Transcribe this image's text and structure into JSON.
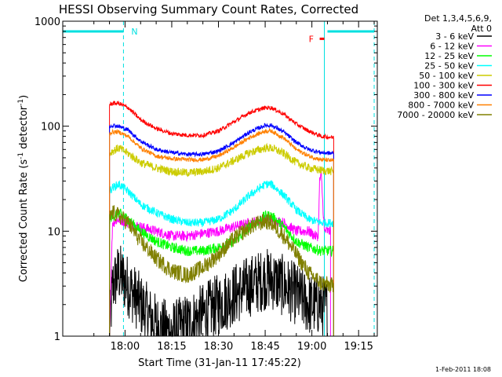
{
  "chart_data": {
    "type": "line",
    "title": "HESSI Observing Summary Count Rates, Corrected",
    "xlabel": "Start Time (31-Jan-11 17:45:22)",
    "ylabel_main": "Corrected Count Rate (s",
    "ylabel_sup1": "-1",
    "ylabel_mid": " detector",
    "ylabel_sup2": "-1",
    "ylabel_end": ")",
    "yscale": "log",
    "ylim": [
      1,
      1000
    ],
    "xlim_minutes": [
      -5,
      96
    ],
    "x_ticks": [
      {
        "t": 15,
        "label": "18:00"
      },
      {
        "t": 30,
        "label": "18:15"
      },
      {
        "t": 45,
        "label": "18:30"
      },
      {
        "t": 60,
        "label": "18:45"
      },
      {
        "t": 75,
        "label": "19:00"
      },
      {
        "t": 90,
        "label": "19:15"
      }
    ],
    "y_ticks": [
      {
        "v": 1,
        "label": "1"
      },
      {
        "v": 10,
        "label": "10"
      },
      {
        "v": 100,
        "label": "100"
      },
      {
        "v": 1000,
        "label": "1000"
      }
    ],
    "legend_header": [
      "Det 1,3,4,5,6,9,",
      "Att 0"
    ],
    "legend_placement": "right",
    "series": [
      {
        "name": "3 - 6 keV",
        "color": "#000000",
        "noise": 0.3,
        "points": [
          [
            10,
            1
          ],
          [
            11,
            3
          ],
          [
            13,
            4
          ],
          [
            16,
            3
          ],
          [
            20,
            2
          ],
          [
            23,
            1.5
          ],
          [
            26,
            1.2
          ],
          [
            30,
            1.1
          ],
          [
            35,
            1.3
          ],
          [
            40,
            1.6
          ],
          [
            45,
            2
          ],
          [
            50,
            2.5
          ],
          [
            55,
            3
          ],
          [
            60,
            3.5
          ],
          [
            62,
            3.5
          ],
          [
            66,
            3
          ],
          [
            70,
            2.5
          ],
          [
            74,
            2
          ],
          [
            76,
            2
          ],
          [
            78,
            2
          ],
          [
            80,
            1.8
          ]
        ]
      },
      {
        "name": "6 - 12 keV",
        "color": "#ff00ff",
        "noise": 0.05,
        "points": [
          [
            10,
            1
          ],
          [
            11,
            12
          ],
          [
            13,
            13
          ],
          [
            16,
            12
          ],
          [
            20,
            11
          ],
          [
            25,
            10
          ],
          [
            30,
            9
          ],
          [
            35,
            9
          ],
          [
            40,
            9.5
          ],
          [
            45,
            10
          ],
          [
            50,
            11
          ],
          [
            55,
            12
          ],
          [
            60,
            13
          ],
          [
            62,
            13
          ],
          [
            66,
            12
          ],
          [
            70,
            10
          ],
          [
            74,
            10
          ],
          [
            76,
            9
          ],
          [
            77,
            9
          ],
          [
            77.5,
            30
          ],
          [
            78,
            35
          ],
          [
            79,
            10
          ],
          [
            80,
            10
          ],
          [
            81,
            10
          ]
        ]
      },
      {
        "name": "12 - 25 keV",
        "color": "#00ff00",
        "noise": 0.05,
        "points": [
          [
            10,
            13
          ],
          [
            11,
            14
          ],
          [
            13,
            15
          ],
          [
            16,
            13
          ],
          [
            20,
            10
          ],
          [
            25,
            8
          ],
          [
            30,
            7
          ],
          [
            35,
            6.5
          ],
          [
            40,
            6.5
          ],
          [
            45,
            7
          ],
          [
            50,
            8
          ],
          [
            55,
            11
          ],
          [
            60,
            14
          ],
          [
            62,
            14
          ],
          [
            66,
            11
          ],
          [
            70,
            8
          ],
          [
            74,
            7
          ],
          [
            78,
            6.5
          ],
          [
            82,
            6.5
          ]
        ]
      },
      {
        "name": "25 - 50 keV",
        "color": "#00ffff",
        "noise": 0.04,
        "points": [
          [
            10,
            24
          ],
          [
            11,
            26
          ],
          [
            13,
            28
          ],
          [
            16,
            24
          ],
          [
            20,
            18
          ],
          [
            25,
            15
          ],
          [
            30,
            13
          ],
          [
            35,
            12
          ],
          [
            40,
            12
          ],
          [
            45,
            13
          ],
          [
            50,
            16
          ],
          [
            55,
            22
          ],
          [
            60,
            28
          ],
          [
            62,
            28
          ],
          [
            66,
            22
          ],
          [
            70,
            16
          ],
          [
            74,
            13
          ],
          [
            78,
            12
          ],
          [
            82,
            12
          ]
        ]
      },
      {
        "name": "50 - 100 keV",
        "color": "#cccc00",
        "noise": 0.04,
        "points": [
          [
            10,
            55
          ],
          [
            11,
            58
          ],
          [
            13,
            62
          ],
          [
            16,
            55
          ],
          [
            20,
            45
          ],
          [
            25,
            40
          ],
          [
            30,
            37
          ],
          [
            35,
            36
          ],
          [
            40,
            37
          ],
          [
            45,
            40
          ],
          [
            50,
            47
          ],
          [
            55,
            56
          ],
          [
            60,
            62
          ],
          [
            62,
            62
          ],
          [
            66,
            55
          ],
          [
            70,
            45
          ],
          [
            74,
            40
          ],
          [
            78,
            38
          ],
          [
            82,
            37
          ]
        ]
      },
      {
        "name": "100 - 300 keV",
        "color": "#ff0000",
        "noise": 0.02,
        "points": [
          [
            10,
            160
          ],
          [
            11,
            165
          ],
          [
            13,
            165
          ],
          [
            16,
            150
          ],
          [
            20,
            115
          ],
          [
            25,
            95
          ],
          [
            30,
            85
          ],
          [
            35,
            82
          ],
          [
            40,
            82
          ],
          [
            45,
            90
          ],
          [
            50,
            110
          ],
          [
            55,
            135
          ],
          [
            60,
            150
          ],
          [
            62,
            150
          ],
          [
            66,
            130
          ],
          [
            70,
            105
          ],
          [
            74,
            90
          ],
          [
            78,
            80
          ],
          [
            82,
            78
          ]
        ]
      },
      {
        "name": "300 - 800 keV",
        "color": "#0000ff",
        "noise": 0.02,
        "points": [
          [
            10,
            100
          ],
          [
            11,
            102
          ],
          [
            13,
            100
          ],
          [
            16,
            92
          ],
          [
            20,
            72
          ],
          [
            25,
            60
          ],
          [
            30,
            56
          ],
          [
            35,
            54
          ],
          [
            40,
            54
          ],
          [
            45,
            58
          ],
          [
            50,
            70
          ],
          [
            55,
            88
          ],
          [
            60,
            102
          ],
          [
            62,
            102
          ],
          [
            66,
            88
          ],
          [
            70,
            70
          ],
          [
            74,
            60
          ],
          [
            78,
            56
          ],
          [
            82,
            55
          ]
        ]
      },
      {
        "name": "800 - 7000 keV",
        "color": "#ff8000",
        "noise": 0.02,
        "points": [
          [
            10,
            85
          ],
          [
            11,
            88
          ],
          [
            13,
            88
          ],
          [
            16,
            80
          ],
          [
            20,
            62
          ],
          [
            25,
            52
          ],
          [
            30,
            49
          ],
          [
            35,
            48
          ],
          [
            40,
            48
          ],
          [
            45,
            52
          ],
          [
            50,
            63
          ],
          [
            55,
            78
          ],
          [
            60,
            90
          ],
          [
            62,
            90
          ],
          [
            66,
            77
          ],
          [
            70,
            60
          ],
          [
            74,
            52
          ],
          [
            78,
            48
          ],
          [
            82,
            47
          ]
        ]
      },
      {
        "name": "7000 - 20000 keV",
        "color": "#808000",
        "noise": 0.08,
        "points": [
          [
            10,
            13
          ],
          [
            11,
            15
          ],
          [
            13,
            14
          ],
          [
            16,
            12
          ],
          [
            20,
            8
          ],
          [
            25,
            5.5
          ],
          [
            30,
            4.2
          ],
          [
            35,
            3.8
          ],
          [
            40,
            4.5
          ],
          [
            45,
            6
          ],
          [
            50,
            8.5
          ],
          [
            55,
            11
          ],
          [
            60,
            12.5
          ],
          [
            62,
            12
          ],
          [
            66,
            9
          ],
          [
            70,
            6
          ],
          [
            74,
            4
          ],
          [
            78,
            3.2
          ],
          [
            82,
            3
          ]
        ]
      }
    ],
    "annotations": {
      "N_label": "N",
      "F_label": "F",
      "night_intervals": [
        [
          -5,
          14.5
        ],
        [
          80,
          95
        ]
      ],
      "night_marker_value": 800,
      "night_label_time": 17,
      "night_vlines": [
        14.5,
        95
      ],
      "flare_label_time": 77,
      "flare_mark": [
        77.5,
        79
      ],
      "flare_vline": 79
    },
    "footer_date": "1-Feb-2011 18:08"
  }
}
